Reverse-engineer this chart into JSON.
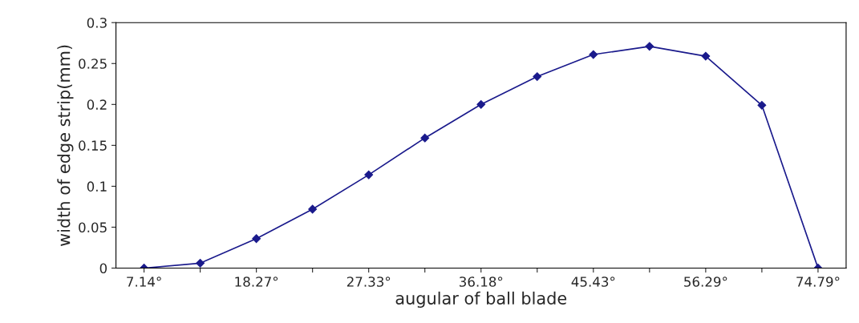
{
  "chart_data": {
    "type": "line",
    "xlabel": "augular of ball blade",
    "ylabel": "width of edge strip(mm)",
    "categories": [
      "7.14°",
      null,
      "18.27°",
      null,
      "27.33°",
      null,
      "36.18°",
      null,
      "45.43°",
      null,
      "56.29°",
      null,
      "74.79°"
    ],
    "series": [
      {
        "color": "#1a1a8c",
        "values": [
          0,
          0.006,
          0.036,
          0.072,
          0.114,
          0.159,
          0.2,
          0.234,
          0.261,
          0.271,
          0.259,
          0.199,
          0
        ]
      }
    ],
    "ylim": [
      0,
      0.3
    ],
    "yticks": [
      0,
      0.05,
      0.1,
      0.15,
      0.2,
      0.25,
      0.3
    ],
    "marker": "diamond",
    "line_style": "solid",
    "grid": false,
    "legend": false
  }
}
